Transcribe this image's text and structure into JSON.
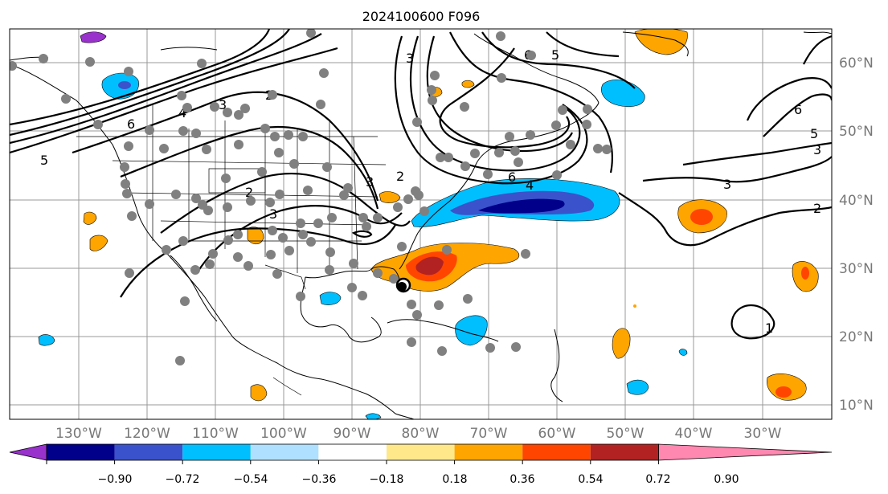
{
  "title": "2024100600 F096",
  "lat_labels": [
    "60°N",
    "50°N",
    "40°N",
    "30°N",
    "20°N",
    "10°N"
  ],
  "lon_labels": [
    "130°W",
    "120°W",
    "110°W",
    "100°W",
    "90°W",
    "80°W",
    "70°W",
    "60°W",
    "50°W",
    "40°W",
    "30°W"
  ],
  "colorbar": {
    "ticks": [
      "−0.90",
      "−0.72",
      "−0.54",
      "−0.36",
      "−0.18",
      "0.18",
      "0.36",
      "0.54",
      "0.72",
      "0.90"
    ],
    "colors": [
      "#9932cc",
      "#00008b",
      "#3a52cc",
      "#00bfff",
      "#b0e0ff",
      "#ffffff",
      "#ffe88a",
      "#ffa500",
      "#ff4500",
      "#b22222",
      "#ff88b0"
    ]
  },
  "contour_labels": [
    "5",
    "6",
    "4",
    "3",
    "2",
    "3",
    "2",
    "3",
    "3",
    "6",
    "5",
    "2",
    "6",
    "4",
    "6",
    "5",
    "3",
    "3",
    "2",
    "1"
  ],
  "hurricane_marker": "hurricane-symbol"
}
